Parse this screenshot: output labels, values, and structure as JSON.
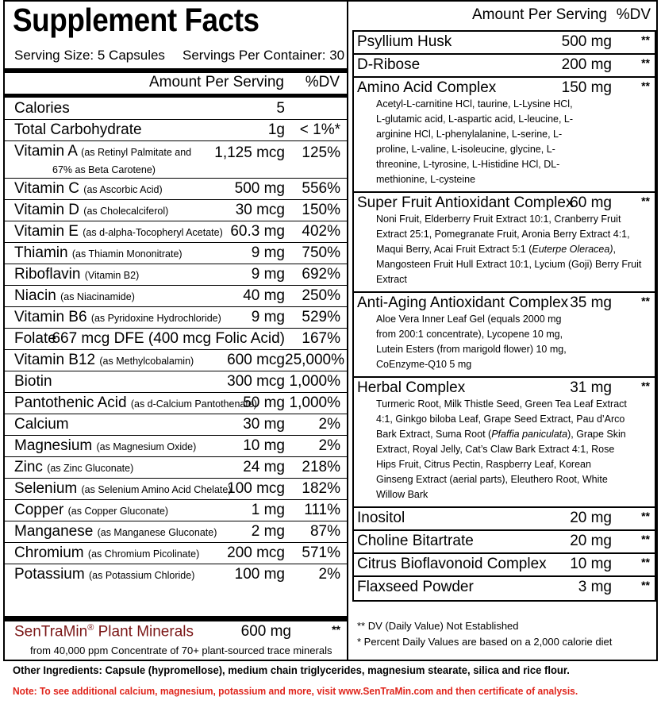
{
  "title": "Supplement Facts",
  "serving_size": "Serving Size: 5 Capsules",
  "servings_per_container": "Servings Per Container: 30",
  "left_table": {
    "header": {
      "amount": "Amount Per Serving",
      "dv": "%DV"
    },
    "rows": [
      {
        "name": "Calories",
        "amount": "5"
      },
      {
        "name": "Total Carbohydrate",
        "amount": "1g",
        "dv": "< 1%*"
      },
      {
        "name": "Vitamin A",
        "sub": [
          "(as Retinyl Palmitate and",
          "67% as Beta Carotene)"
        ],
        "amount": "1,125 mcg",
        "dv": "125%"
      },
      {
        "name": "Vitamin C",
        "sub": [
          "(as Ascorbic Acid)"
        ],
        "amount": "500 mg",
        "dv": "556%"
      },
      {
        "name": "Vitamin D",
        "sub": [
          "(as Cholecalciferol)"
        ],
        "amount": "30 mcg",
        "dv": "150%"
      },
      {
        "name": "Vitamin E",
        "sub": [
          "(as d-alpha-Tocopheryl Acetate)"
        ],
        "amount": "60.3 mg",
        "dv": "402%"
      },
      {
        "name": "Thiamin",
        "sub": [
          "(as Thiamin Mononitrate)"
        ],
        "amount": "9 mg",
        "dv": "750%"
      },
      {
        "name": "Riboflavin",
        "sub": [
          "(Vitamin B2)"
        ],
        "amount": "9 mg",
        "dv": "692%"
      },
      {
        "name": "Niacin",
        "sub": [
          "(as Niacinamide)"
        ],
        "amount": "40 mg",
        "dv": "250%"
      },
      {
        "name": "Vitamin B6",
        "sub": [
          "(as Pyridoxine Hydrochloride)"
        ],
        "amount": "9 mg",
        "dv": "529%"
      },
      {
        "name": "Folate",
        "amount": "667 mcg DFE (400 mcg Folic Acid)",
        "dv": "167%"
      },
      {
        "name": "Vitamin B12",
        "sub": [
          "(as Methylcobalamin)"
        ],
        "amount": "600 mcg",
        "dv": "25,000%"
      },
      {
        "name": "Biotin",
        "amount": "300 mcg",
        "dv": "1,000%"
      },
      {
        "name": "Pantothenic Acid",
        "sub": [
          "(as d-Calcium Pantothenate)"
        ],
        "amount": "50 mg",
        "dv": "1,000%"
      },
      {
        "name": "Calcium",
        "amount": "30 mg",
        "dv": "2%"
      },
      {
        "name": "Magnesium",
        "sub": [
          "(as Magnesium Oxide)"
        ],
        "amount": "10 mg",
        "dv": "2%"
      },
      {
        "name": "Zinc",
        "sub": [
          "(as Zinc Gluconate)"
        ],
        "amount": "24 mg",
        "dv": "218%"
      },
      {
        "name": "Selenium",
        "sub": [
          "(as Selenium Amino Acid Chelate)"
        ],
        "amount": "100 mcg",
        "dv": "182%"
      },
      {
        "name": "Copper",
        "sub": [
          "(as Copper Gluconate)"
        ],
        "amount": "1 mg",
        "dv": "111%"
      },
      {
        "name": "Manganese",
        "sub": [
          "(as Manganese Gluconate)"
        ],
        "amount": "2 mg",
        "dv": "87%"
      },
      {
        "name": "Chromium",
        "sub": [
          "(as Chromium Picolinate)"
        ],
        "amount": "200 mcg",
        "dv": "571%"
      },
      {
        "name": "Potassium",
        "sub": [
          "(as Potassium Chloride)"
        ],
        "amount": "100 mg",
        "dv": "2%"
      }
    ],
    "featured": {
      "name": "SenTraMin",
      "mark": "®",
      "name_suffix": "Plant Minerals",
      "amount": "600 mg",
      "dv": "**",
      "note": "from 40,000 ppm Concentrate of 70+ plant-sourced trace minerals"
    }
  },
  "right_table": {
    "header": {
      "amount": "Amount Per Serving",
      "dv": "%DV"
    },
    "rows": [
      {
        "name": "Psyllium Husk",
        "amount": "500 mg",
        "dv": "**"
      },
      {
        "name": "D-Ribose",
        "amount": "200 mg",
        "dv": "**"
      },
      {
        "name": "Amino Acid Complex",
        "amount": "150 mg",
        "dv": "**",
        "desc": [
          "Acetyl-L-carnitine HCl, taurine, L-Lysine HCl, L-glutamic acid, L-aspartic acid, L-leucine, L-arginine HCl, L-phenylalanine, L-serine, L-proline, L-valine, L-isoleucine, glycine, L-threonine, L-tyrosine, L-Histidine HCl, DL-methionine, L-cysteine"
        ]
      },
      {
        "name": "Super Fruit Antioxidant Complex",
        "amount": "60 mg",
        "dv": "**",
        "desc": [
          "Noni Fruit, Elderberry Fruit Extract 10:1, Cranberry Fruit Extract 25:1, Pomegranate Fruit, Aronia Berry Extract 4:1, Maqui Berry, Acai Fruit Extract 5:1 (",
          "Euterpe Oleracea)",
          ", Mangosteen Fruit Hull Extract 10:1, Lycium (Goji) Berry Fruit Extract"
        ]
      },
      {
        "name": "Anti-Aging Antioxidant Complex",
        "amount": "35 mg",
        "dv": "**",
        "desc": [
          "Aloe Vera Inner Leaf Gel (equals 2000 mg from 200:1 concentrate), Lycopene 10 mg, Lutein Esters (from marigold flower) 10 mg, CoEnzyme-Q10 5 mg"
        ]
      },
      {
        "name": "Herbal Complex",
        "amount": "31 mg",
        "dv": "**",
        "desc": [
          "Turmeric Root, Milk Thistle Seed, Green Tea Leaf Extract 4:1, Ginkgo biloba Leaf, Grape Seed Extract, Pau d’Arco Bark Extract, Suma Root (",
          "Pfaffia paniculata",
          "), Grape Skin Extract, Royal Jelly, Cat’s Claw Bark Extract 4:1, Rose Hips Fruit, Citrus Pectin, Raspberry Leaf, Korean Ginseng Extract (aerial parts), Eleuthero Root, White Willow Bark"
        ]
      },
      {
        "name": "Inositol",
        "amount": "20 mg",
        "dv": "**"
      },
      {
        "name": "Choline Bitartrate",
        "amount": "20 mg",
        "dv": "**"
      },
      {
        "name": "Citrus Bioflavonoid Complex",
        "amount": "10 mg",
        "dv": "**"
      },
      {
        "name": "Flaxseed Powder",
        "amount": "3 mg",
        "dv": "**"
      }
    ],
    "footnotes": [
      "** DV (Daily Value) Not Established",
      "* Percent Daily Values are based on a 2,000 calorie diet"
    ]
  },
  "other_ingredients": "Other Ingredients: Capsule (hypromellose), medium chain triglycerides, magnesium stearate, silica and rice flour.",
  "note": "Note: To see additional calcium, magnesium, potassium and more, visit www.SenTraMin.com and then certificate of analysis."
}
